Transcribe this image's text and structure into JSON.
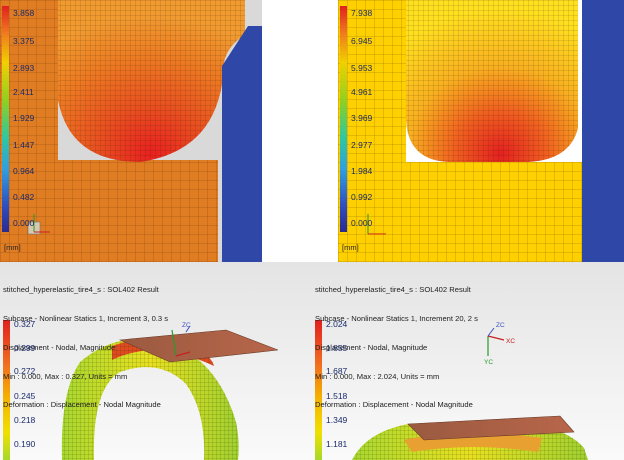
{
  "colors": {
    "contact_orange": "#e07c22",
    "contact_yellow": "#ffd000",
    "rigid_blue": "#2f48a8",
    "viewport_bg_top": "#dcdcdc",
    "viewport_bg_bottom": "#f7f7f7"
  },
  "top_left": {
    "legend": [
      "3.858",
      "3.375",
      "2.893",
      "2.411",
      "1.929",
      "1.447",
      "0.964",
      "0.482",
      "0.000"
    ],
    "unit": "[mm]"
  },
  "top_right": {
    "legend": [
      "7.938",
      "6.945",
      "5.953",
      "4.961",
      "3.969",
      "2.977",
      "1.984",
      "0.992",
      "0.000"
    ],
    "unit": "[mm]"
  },
  "bottom_left": {
    "info": [
      "stitched_hyperelastic_tire4_s : SOL402 Result",
      "Subcase - Nonlinear Statics 1, Increment 3, 0.3 s",
      "Displacement - Nodal, Magnitude",
      "Min : 0.000, Max : 0.327, Units = mm",
      "Deformation : Displacement - Nodal Magnitude"
    ],
    "legend": [
      "0.327",
      "0.299",
      "0.272",
      "0.245",
      "0.218",
      "0.190"
    ],
    "triad": {
      "zc": "ZC"
    }
  },
  "bottom_right": {
    "info": [
      "stitched_hyperelastic_tire4_s : SOL402 Result",
      "Subcase - Nonlinear Statics 1, Increment 20, 2 s",
      "Displacement - Nodal, Magnitude",
      "Min : 0.000, Max : 2.024, Units = mm",
      "Deformation : Displacement - Nodal Magnitude"
    ],
    "legend": [
      "2.024",
      "1.855",
      "1.687",
      "1.518",
      "1.349",
      "1.181"
    ],
    "triad": {
      "zc": "ZC",
      "xc": "XC",
      "yc": "YC"
    }
  }
}
